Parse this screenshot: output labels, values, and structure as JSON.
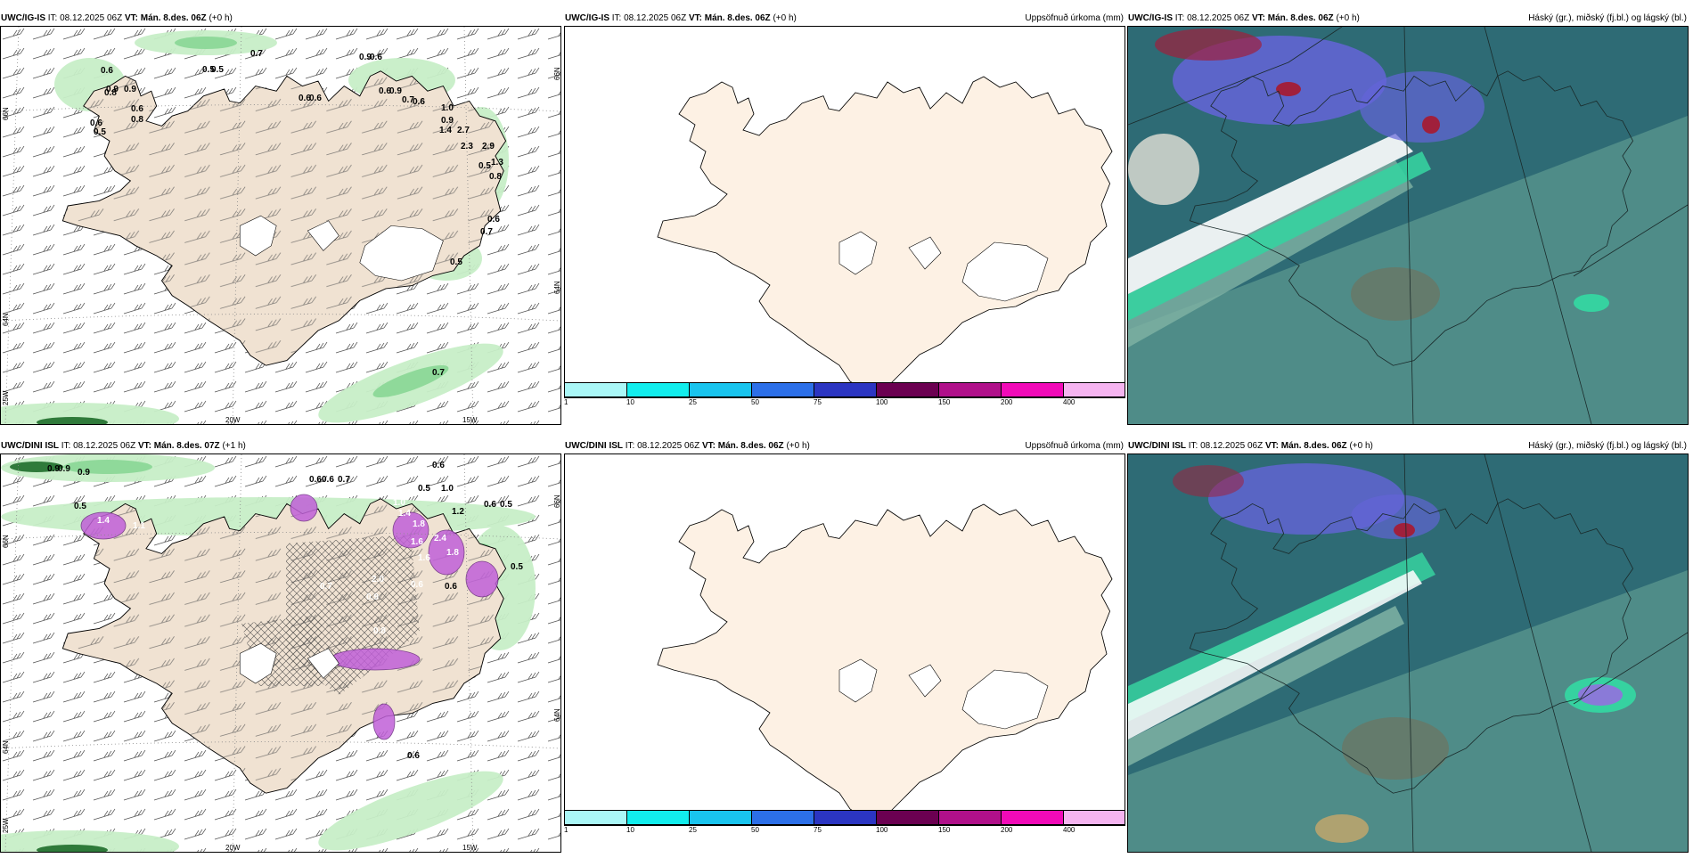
{
  "colors": {
    "land": "#f0e2d2",
    "land_blank": "#fdf1e4",
    "green_light": "#c8efc8",
    "green_mid": "#8fd99a",
    "green_dark": "#2f7a3a",
    "magenta": "#c060d8",
    "cloud_base": "#2e6b75",
    "cloud_mid": "#5e9a90",
    "cloud_low": "#7fb3a4",
    "cloud_blue": "#6464d8",
    "cloud_teal": "#36d2a0",
    "cloud_red": "#a0203c",
    "cloud_white": "#ffffff"
  },
  "colorbar": {
    "ticks": [
      "1",
      "10",
      "25",
      "50",
      "75",
      "100",
      "150",
      "200",
      "400"
    ],
    "colors": [
      "#aaf7f7",
      "#12eded",
      "#19c4ee",
      "#2c6fe8",
      "#2b35c2",
      "#6b0051",
      "#b0108a",
      "#f10ab8",
      "#f5b4f0"
    ]
  },
  "panels": [
    {
      "model": "UWC/IG-IS",
      "it_label": "IT:",
      "it": "08.12.2025 06Z",
      "vt_label": "VT:",
      "vt": "Mán. 8.des. 06Z",
      "lead": "(+0 h)",
      "right_title": "",
      "lat_labels": [
        "66N",
        "64N",
        "25W"
      ],
      "lon_labels": [
        "20W",
        "15W"
      ],
      "east_lat_labels": [
        "66N",
        "64N"
      ],
      "values": [
        "0.6",
        "0.5",
        "0.7",
        "0.9",
        "0.6",
        "0.8",
        "0.9",
        "0.6",
        "0.8",
        "0.6",
        "0.5",
        "0.6",
        "0.5",
        "0.9",
        "0.6",
        "0.6",
        "0.9",
        "0.7",
        "0.6",
        "1.0",
        "0.9",
        "1.4",
        "2.7",
        "2.9",
        "2.3",
        "1.3",
        "0.5",
        "0.8",
        "0.6",
        "0.7",
        "0.5",
        "0.7"
      ]
    },
    {
      "model": "UWC/IG-IS",
      "it_label": "IT:",
      "it": "08.12.2025 06Z",
      "vt_label": "VT:",
      "vt": "Mán. 8.des. 06Z",
      "lead": "(+0 h)",
      "right_title": "Uppsöfnuð úrkoma (mm)"
    },
    {
      "model": "UWC/IG-IS",
      "it_label": "IT:",
      "it": "08.12.2025 06Z",
      "vt_label": "VT:",
      "vt": "Mán. 8.des. 06Z",
      "lead": "(+0 h)",
      "right_title": "Háský (gr.), miðský (fj.bl.) og lágský (bl.)"
    },
    {
      "model": "UWC/DINI ISL",
      "it_label": "IT:",
      "it": "08.12.2025 06Z",
      "vt_label": "VT:",
      "vt": "Mán. 8.des. 07Z",
      "lead": "(+1 h)",
      "right_title": "",
      "lat_labels": [
        "66N",
        "64N",
        "25W"
      ],
      "lon_labels": [
        "20W",
        "15W"
      ],
      "east_lat_labels": [
        "66N",
        "64N"
      ],
      "values": [
        "0.9",
        "0.9",
        "0.9",
        "0.5",
        "1.4",
        "1.1",
        "0.6",
        "0.6",
        "0.7",
        "1.4",
        "1.8",
        "0.5",
        "1.0",
        "1.0",
        "1.6",
        "1.2",
        "2.4",
        "1.8",
        "0.6",
        "0.5",
        "2.0",
        "0.6",
        "0.7",
        "0.6",
        "1.6",
        "0.5",
        "0.9",
        "0.8",
        "0.6",
        "0.6"
      ]
    },
    {
      "model": "UWC/DINI ISL",
      "it_label": "IT:",
      "it": "08.12.2025 06Z",
      "vt_label": "VT:",
      "vt": "Mán. 8.des. 06Z",
      "lead": "(+0 h)",
      "right_title": "Uppsöfnuð úrkoma (mm)"
    },
    {
      "model": "UWC/DINI ISL",
      "it_label": "IT:",
      "it": "08.12.2025 06Z",
      "vt_label": "VT:",
      "vt": "Mán. 8.des. 06Z",
      "lead": "(+0 h)",
      "right_title": "Háský (gr.), miðský (fj.bl.) og lágský (bl.)"
    }
  ]
}
